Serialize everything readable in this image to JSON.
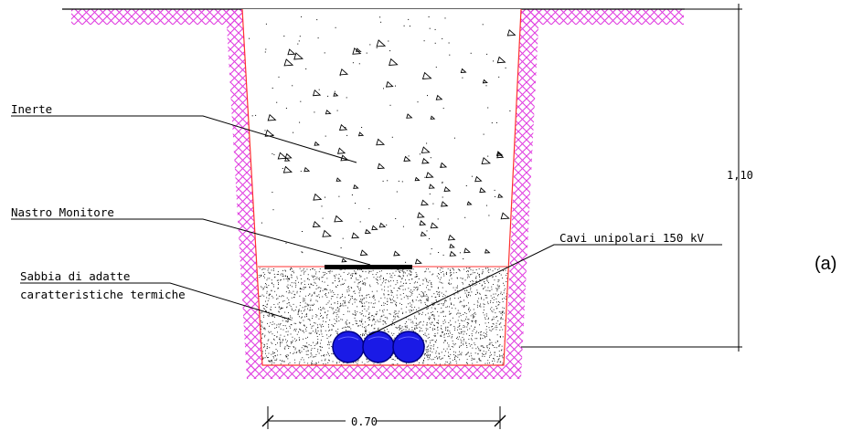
{
  "labels": {
    "inerte": "Inerte",
    "nastro": "Nastro Monitore",
    "sabbia_line1": "Sabbia di adatte",
    "sabbia_line2": "caratteristiche termiche",
    "cavi": "Cavi unipolari 150 kV"
  },
  "dimensions": {
    "height": "1,10",
    "width": "0.70"
  },
  "figure_label": "(a)",
  "colors": {
    "soil_hatch": "#e040e0",
    "trench_edge": "#ff3030",
    "cable": "#1a1ae6",
    "cable_edge": "#000080",
    "tape": "#000000"
  },
  "icons": [
    "triangle-aggregate-icon",
    "sand-dots-texture",
    "cross-hatch-soil"
  ]
}
